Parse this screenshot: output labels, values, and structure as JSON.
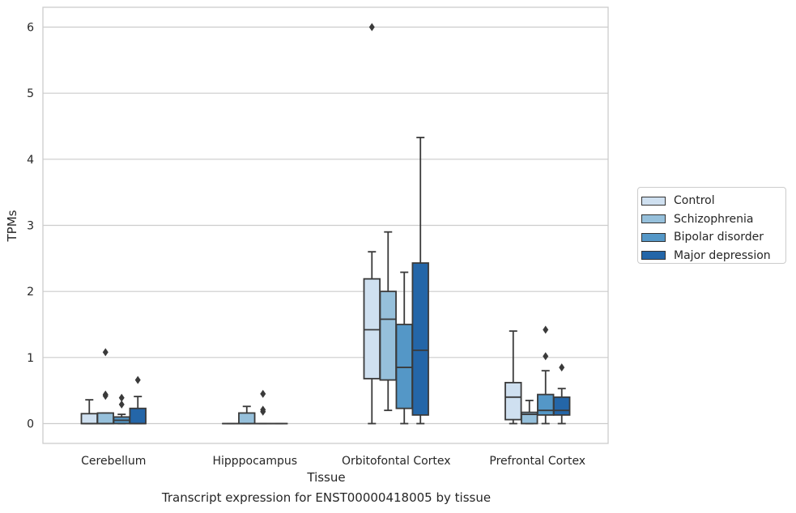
{
  "chart_data": {
    "type": "box",
    "title": "",
    "xlabel": "Tissue",
    "ylabel": "TPMs",
    "caption": "Transcript expression for ENST00000418005 by tissue",
    "ylim": [
      -0.3,
      6.3
    ],
    "yticks": [
      0,
      1,
      2,
      3,
      4,
      5,
      6
    ],
    "grid": "horizontal",
    "legend_position": "right",
    "categories": [
      "Cerebellum",
      "Hipppocampus",
      "Orbitofontal Cortex",
      "Prefrontal Cortex"
    ],
    "series": [
      {
        "name": "Control",
        "color": "#cfe0f0",
        "boxes": [
          {
            "whislo": 0,
            "q1": 0,
            "med": 0,
            "q3": 0.15,
            "whishi": 0.36,
            "fliers": []
          },
          {
            "whislo": 0,
            "q1": 0,
            "med": 0,
            "q3": 0,
            "whishi": 0,
            "fliers": []
          },
          {
            "whislo": 0,
            "q1": 0.68,
            "med": 1.42,
            "q3": 2.19,
            "whishi": 2.6,
            "fliers": [
              6.0
            ]
          },
          {
            "whislo": 0,
            "q1": 0.06,
            "med": 0.4,
            "q3": 0.62,
            "whishi": 1.4,
            "fliers": []
          }
        ]
      },
      {
        "name": "Schizophrenia",
        "color": "#96c0db",
        "boxes": [
          {
            "whislo": 0,
            "q1": 0,
            "med": 0,
            "q3": 0.16,
            "whishi": 0.16,
            "fliers": [
              0.42,
              0.44,
              1.08
            ]
          },
          {
            "whislo": 0,
            "q1": 0,
            "med": 0,
            "q3": 0.16,
            "whishi": 0.26,
            "fliers": []
          },
          {
            "whislo": 0.2,
            "q1": 0.66,
            "med": 1.58,
            "q3": 2.0,
            "whishi": 2.9,
            "fliers": []
          },
          {
            "whislo": 0,
            "q1": 0,
            "med": 0.14,
            "q3": 0.17,
            "whishi": 0.35,
            "fliers": []
          }
        ]
      },
      {
        "name": "Bipolar disorder",
        "color": "#5497c7",
        "boxes": [
          {
            "whislo": 0,
            "q1": 0,
            "med": 0.05,
            "q3": 0.1,
            "whishi": 0.14,
            "fliers": [
              0.29,
              0.39
            ]
          },
          {
            "whislo": 0,
            "q1": 0,
            "med": 0,
            "q3": 0,
            "whishi": 0,
            "fliers": [
              0.18,
              0.21,
              0.45
            ]
          },
          {
            "whislo": 0,
            "q1": 0.23,
            "med": 0.85,
            "q3": 1.5,
            "whishi": 2.29,
            "fliers": []
          },
          {
            "whislo": 0,
            "q1": 0.13,
            "med": 0.2,
            "q3": 0.44,
            "whishi": 0.8,
            "fliers": [
              1.02,
              1.42
            ]
          }
        ]
      },
      {
        "name": "Major depression",
        "color": "#2466a8",
        "boxes": [
          {
            "whislo": 0,
            "q1": 0,
            "med": 0,
            "q3": 0.23,
            "whishi": 0.41,
            "fliers": [
              0.66
            ]
          },
          {
            "whislo": 0,
            "q1": 0,
            "med": 0,
            "q3": 0,
            "whishi": 0,
            "fliers": []
          },
          {
            "whislo": 0,
            "q1": 0.13,
            "med": 1.11,
            "q3": 2.43,
            "whishi": 4.33,
            "fliers": []
          },
          {
            "whislo": 0,
            "q1": 0.13,
            "med": 0.2,
            "q3": 0.4,
            "whishi": 0.53,
            "fliers": [
              0.85
            ]
          }
        ]
      }
    ]
  }
}
